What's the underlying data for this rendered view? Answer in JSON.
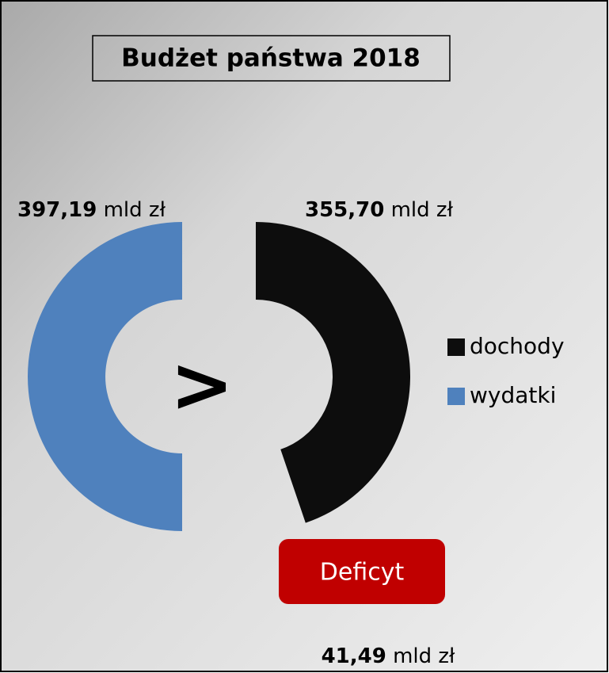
{
  "chart_data": {
    "type": "half-donut",
    "title": "Budżet państwa 2018",
    "categories": [
      "dochody",
      "wydatki"
    ],
    "values": [
      355.7,
      397.19
    ],
    "value_labels": [
      "355,70",
      "397,19"
    ],
    "colors": [
      "#0d0d0d",
      "#4f81bd"
    ],
    "unit": "mld zł",
    "comparison": ">",
    "deficit": {
      "label": "Deficyt",
      "value": 41.49,
      "value_label": "41,49"
    }
  }
}
